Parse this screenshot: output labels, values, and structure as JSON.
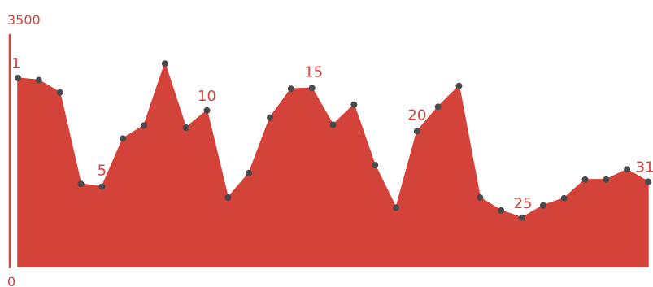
{
  "chart_data": {
    "type": "area",
    "title": "",
    "xlabel": "",
    "ylabel": "",
    "x": [
      1,
      2,
      3,
      4,
      5,
      6,
      7,
      8,
      9,
      10,
      11,
      12,
      13,
      14,
      15,
      16,
      17,
      18,
      19,
      20,
      21,
      22,
      23,
      24,
      25,
      26,
      27,
      28,
      29,
      30,
      31
    ],
    "series": [
      {
        "values": [
          2620,
          2590,
          2420,
          1150,
          1110,
          1780,
          1960,
          2820,
          1930,
          2170,
          960,
          1300,
          2070,
          2470,
          2480,
          1970,
          2250,
          1410,
          820,
          1880,
          2220,
          2510,
          960,
          780,
          680,
          850,
          950,
          1210,
          1210,
          1350,
          1180
        ]
      }
    ],
    "ylim": [
      0,
      3500
    ],
    "y_tick_labels": {
      "max": "3500",
      "min": "0"
    },
    "labeled_points": [
      {
        "x": 1,
        "label": "1"
      },
      {
        "x": 5,
        "label": "5"
      },
      {
        "x": 10,
        "label": "10"
      },
      {
        "x": 15,
        "label": "15"
      },
      {
        "x": 20,
        "label": "20"
      },
      {
        "x": 25,
        "label": "25"
      },
      {
        "x": 31,
        "label": "31"
      }
    ],
    "grid": false,
    "legend": "none",
    "colors": {
      "fill": "#d4433a",
      "axis": "#d4433a",
      "marker": "#4a4a4a",
      "label": "#d4433a"
    }
  }
}
